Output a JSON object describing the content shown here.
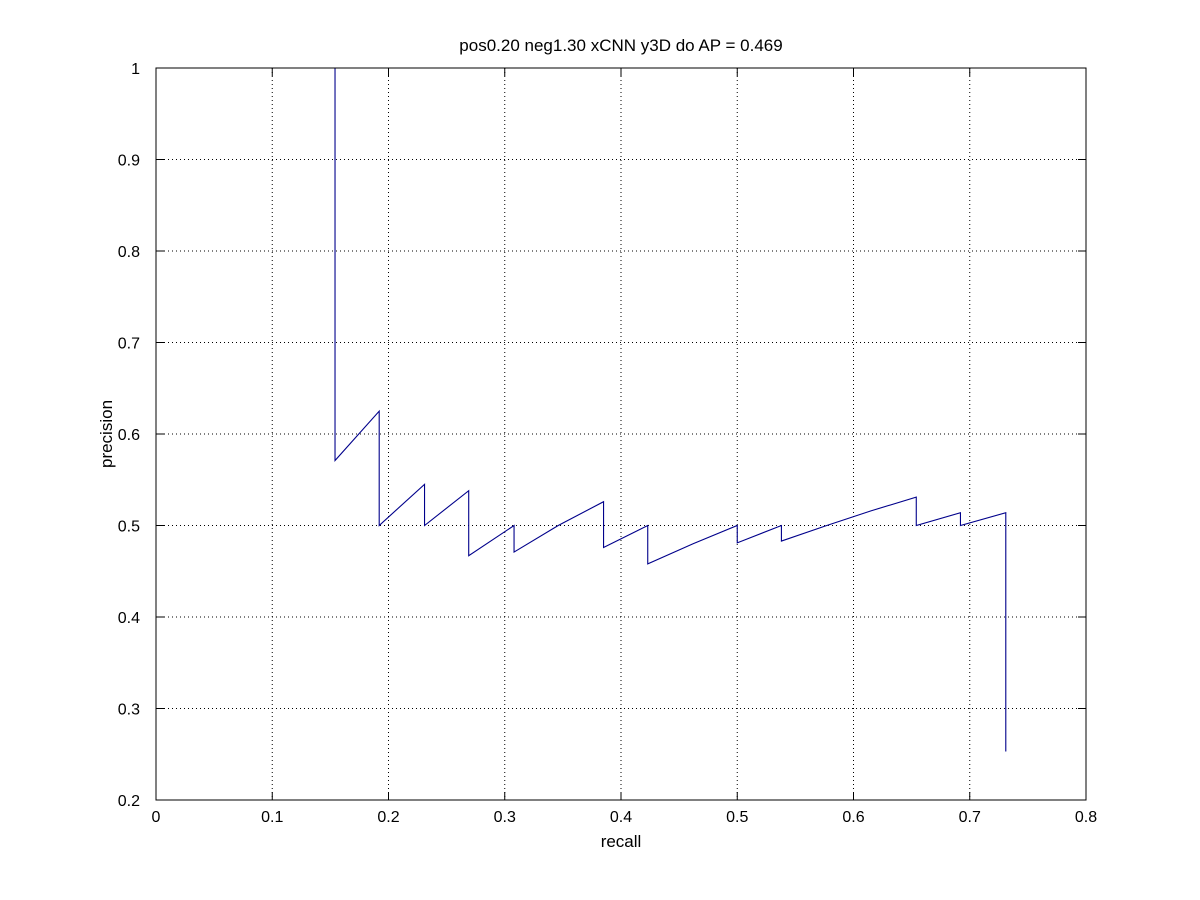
{
  "chart_data": {
    "type": "line",
    "title": "pos0.20 neg1.30 xCNN y3D do AP = 0.469",
    "xlabel": "recall",
    "ylabel": "precision",
    "xlim": [
      0,
      0.8
    ],
    "ylim": [
      0.2,
      1
    ],
    "grid": true,
    "x_ticks": [
      0,
      0.1,
      0.2,
      0.3,
      0.4,
      0.5,
      0.6,
      0.7,
      0.8
    ],
    "x_tick_labels": [
      "0",
      "0.1",
      "0.2",
      "0.3",
      "0.4",
      "0.5",
      "0.6",
      "0.7",
      "0.8"
    ],
    "y_ticks": [
      0.2,
      0.3,
      0.4,
      0.5,
      0.6,
      0.7,
      0.8,
      0.9,
      1
    ],
    "y_tick_labels": [
      "0.2",
      "0.3",
      "0.4",
      "0.5",
      "0.6",
      "0.7",
      "0.8",
      "0.9",
      "1"
    ],
    "series": [
      {
        "color": "#00008b",
        "x": [
          0.154,
          0.154,
          0.192,
          0.192,
          0.231,
          0.231,
          0.269,
          0.269,
          0.308,
          0.308,
          0.346,
          0.385,
          0.385,
          0.423,
          0.423,
          0.462,
          0.5,
          0.5,
          0.538,
          0.538,
          0.577,
          0.615,
          0.654,
          0.654,
          0.692,
          0.692,
          0.731,
          0.731
        ],
        "y": [
          1.0,
          0.571,
          0.625,
          0.5,
          0.545,
          0.5,
          0.538,
          0.467,
          0.5,
          0.471,
          0.5,
          0.526,
          0.476,
          0.5,
          0.458,
          0.48,
          0.5,
          0.481,
          0.5,
          0.483,
          0.5,
          0.516,
          0.531,
          0.5,
          0.514,
          0.5,
          0.514,
          0.253
        ]
      }
    ]
  }
}
